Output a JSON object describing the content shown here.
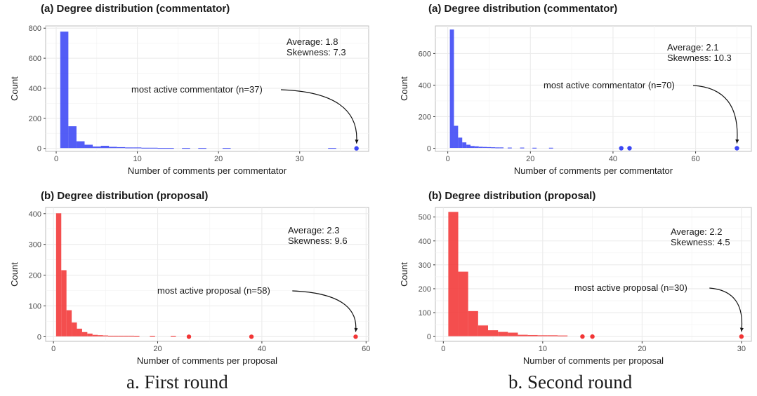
{
  "captions": {
    "left": "a. First round",
    "right": "b. Second round"
  },
  "colors": {
    "blue": "#3b47f5",
    "red": "#f23535",
    "grid": "#ebebeb",
    "panel_border": "#bdbdbd"
  },
  "chart_data": [
    {
      "id": "r1-commentator",
      "type": "bar",
      "title": "(a) Degree distribution (commentator)",
      "xlabel": "Number of comments per commentator",
      "ylabel": "Count",
      "xlim": [
        -1.3,
        38.5
      ],
      "ylim": [
        -20,
        815
      ],
      "xticks": [
        0,
        10,
        20,
        30
      ],
      "yticks": [
        0,
        200,
        400,
        600,
        800
      ],
      "color": "blue",
      "bins": [
        {
          "x0": 0.5,
          "x1": 1.5,
          "y": 775
        },
        {
          "x0": 1.5,
          "x1": 2.5,
          "y": 145
        },
        {
          "x0": 2.5,
          "x1": 3.5,
          "y": 45
        },
        {
          "x0": 3.5,
          "x1": 4.5,
          "y": 22
        },
        {
          "x0": 4.5,
          "x1": 5.5,
          "y": 10
        },
        {
          "x0": 5.5,
          "x1": 6.5,
          "y": 15
        },
        {
          "x0": 6.5,
          "x1": 7.5,
          "y": 8
        },
        {
          "x0": 7.5,
          "x1": 8.5,
          "y": 6
        },
        {
          "x0": 8.5,
          "x1": 9.5,
          "y": 4
        },
        {
          "x0": 9.5,
          "x1": 10.5,
          "y": 4
        },
        {
          "x0": 10.5,
          "x1": 11.5,
          "y": 2
        },
        {
          "x0": 11.5,
          "x1": 12.5,
          "y": 2
        },
        {
          "x0": 12.5,
          "x1": 13.5,
          "y": 1
        },
        {
          "x0": 13.5,
          "x1": 14.5,
          "y": 1
        },
        {
          "x0": 15.5,
          "x1": 16.5,
          "y": 1
        },
        {
          "x0": 17.5,
          "x1": 18.5,
          "y": 1
        },
        {
          "x0": 20.5,
          "x1": 21.5,
          "y": 1
        },
        {
          "x0": 33.5,
          "x1": 34.5,
          "y": 1
        }
      ],
      "points": [
        37
      ],
      "stats": [
        "Average: 1.8",
        "Skewness: 7.3"
      ],
      "annotation": "most active commentator (n=37)"
    },
    {
      "id": "r2-commentator",
      "type": "bar",
      "title": "(a) Degree distribution (commentator)",
      "xlabel": "Number of comments per commentator",
      "ylabel": "Count",
      "xlim": [
        -3,
        73.5
      ],
      "ylim": [
        -20,
        775
      ],
      "xticks": [
        0,
        20,
        40,
        60
      ],
      "yticks": [
        0,
        200,
        400,
        600
      ],
      "color": "blue",
      "bins": [
        {
          "x0": 0.5,
          "x1": 1.5,
          "y": 750
        },
        {
          "x0": 1.5,
          "x1": 2.5,
          "y": 140
        },
        {
          "x0": 2.5,
          "x1": 3.5,
          "y": 65
        },
        {
          "x0": 3.5,
          "x1": 4.5,
          "y": 35
        },
        {
          "x0": 4.5,
          "x1": 5.5,
          "y": 20
        },
        {
          "x0": 5.5,
          "x1": 6.5,
          "y": 12
        },
        {
          "x0": 6.5,
          "x1": 7.5,
          "y": 10
        },
        {
          "x0": 7.5,
          "x1": 8.5,
          "y": 7
        },
        {
          "x0": 8.5,
          "x1": 9.5,
          "y": 6
        },
        {
          "x0": 9.5,
          "x1": 10.5,
          "y": 5
        },
        {
          "x0": 10.5,
          "x1": 11.5,
          "y": 4
        },
        {
          "x0": 11.5,
          "x1": 12.5,
          "y": 3
        },
        {
          "x0": 12.5,
          "x1": 13.5,
          "y": 3
        },
        {
          "x0": 14.5,
          "x1": 15.5,
          "y": 2
        },
        {
          "x0": 17.5,
          "x1": 18.5,
          "y": 2
        },
        {
          "x0": 20.5,
          "x1": 21.5,
          "y": 1
        },
        {
          "x0": 24.5,
          "x1": 25.5,
          "y": 1
        }
      ],
      "points": [
        42,
        44,
        70
      ],
      "stats": [
        "Average: 2.1",
        "Skewness: 10.3"
      ],
      "annotation": "most active commentator (n=70)"
    },
    {
      "id": "r1-proposal",
      "type": "bar",
      "title": "(b) Degree distribution (proposal)",
      "xlabel": "Number of comments per proposal",
      "ylabel": "Count",
      "xlim": [
        -1.5,
        60.5
      ],
      "ylim": [
        -15,
        420
      ],
      "xticks": [
        0,
        20,
        40,
        60
      ],
      "yticks": [
        0,
        100,
        200,
        300,
        400
      ],
      "color": "red",
      "bins": [
        {
          "x0": 0.5,
          "x1": 1.5,
          "y": 400
        },
        {
          "x0": 1.5,
          "x1": 2.5,
          "y": 215
        },
        {
          "x0": 2.5,
          "x1": 3.5,
          "y": 85
        },
        {
          "x0": 3.5,
          "x1": 4.5,
          "y": 45
        },
        {
          "x0": 4.5,
          "x1": 5.5,
          "y": 25
        },
        {
          "x0": 5.5,
          "x1": 6.5,
          "y": 14
        },
        {
          "x0": 6.5,
          "x1": 7.5,
          "y": 9
        },
        {
          "x0": 7.5,
          "x1": 8.5,
          "y": 5
        },
        {
          "x0": 8.5,
          "x1": 9.5,
          "y": 4
        },
        {
          "x0": 9.5,
          "x1": 10.5,
          "y": 3
        },
        {
          "x0": 10.5,
          "x1": 11.5,
          "y": 2
        },
        {
          "x0": 11.5,
          "x1": 12.5,
          "y": 2
        },
        {
          "x0": 12.5,
          "x1": 13.5,
          "y": 2
        },
        {
          "x0": 13.5,
          "x1": 14.5,
          "y": 2
        },
        {
          "x0": 14.5,
          "x1": 15.5,
          "y": 2
        },
        {
          "x0": 15.5,
          "x1": 16.5,
          "y": 1
        },
        {
          "x0": 18.5,
          "x1": 19.5,
          "y": 1
        },
        {
          "x0": 22.5,
          "x1": 23.5,
          "y": 1
        }
      ],
      "points": [
        26,
        38,
        58
      ],
      "stats": [
        "Average: 2.3",
        "Skewness: 9.6"
      ],
      "annotation": "most active proposal (n=58)"
    },
    {
      "id": "r2-proposal",
      "type": "bar",
      "title": "(b) Degree distribution (proposal)",
      "xlabel": "Number of comments per proposal",
      "ylabel": "Count",
      "xlim": [
        -0.8,
        31
      ],
      "ylim": [
        -20,
        540
      ],
      "xticks": [
        0,
        10,
        20,
        30
      ],
      "yticks": [
        0,
        100,
        200,
        300,
        400,
        500
      ],
      "color": "red",
      "bins": [
        {
          "x0": 0.5,
          "x1": 1.5,
          "y": 520
        },
        {
          "x0": 1.5,
          "x1": 2.5,
          "y": 270
        },
        {
          "x0": 2.5,
          "x1": 3.5,
          "y": 105
        },
        {
          "x0": 3.5,
          "x1": 4.5,
          "y": 45
        },
        {
          "x0": 4.5,
          "x1": 5.5,
          "y": 25
        },
        {
          "x0": 5.5,
          "x1": 6.5,
          "y": 18
        },
        {
          "x0": 6.5,
          "x1": 7.5,
          "y": 15
        },
        {
          "x0": 7.5,
          "x1": 8.5,
          "y": 6
        },
        {
          "x0": 8.5,
          "x1": 9.5,
          "y": 5
        },
        {
          "x0": 9.5,
          "x1": 10.5,
          "y": 4
        },
        {
          "x0": 10.5,
          "x1": 11.5,
          "y": 4
        },
        {
          "x0": 11.5,
          "x1": 12.5,
          "y": 3
        }
      ],
      "points": [
        14,
        15,
        30
      ],
      "stats": [
        "Average: 2.2",
        "Skewness: 4.5"
      ],
      "annotation": "most active proposal (n=30)"
    }
  ]
}
